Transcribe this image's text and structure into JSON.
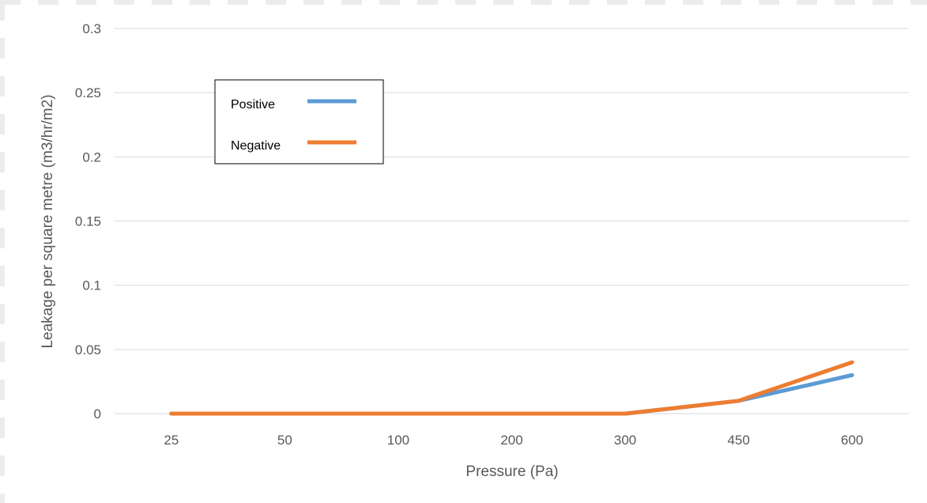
{
  "chart_data": {
    "type": "line",
    "title": "",
    "xlabel": "Pressure (Pa)",
    "ylabel": "Leakage per square metre (m3/hr/m2)",
    "categories": [
      "25",
      "50",
      "100",
      "200",
      "300",
      "450",
      "600"
    ],
    "y_ticks": [
      "0",
      "0.05",
      "0.1",
      "0.15",
      "0.2",
      "0.25",
      "0.3"
    ],
    "ylim": [
      0,
      0.3
    ],
    "grid": true,
    "legend_position": "top-left",
    "series": [
      {
        "name": "Positive",
        "color": "#5B9BD5",
        "values": [
          0,
          0,
          0,
          0,
          0,
          0.01,
          0.03
        ]
      },
      {
        "name": "Negative",
        "color": "#ED7D31",
        "values": [
          0,
          0,
          0,
          0,
          0,
          0.01,
          0.04
        ]
      }
    ]
  }
}
